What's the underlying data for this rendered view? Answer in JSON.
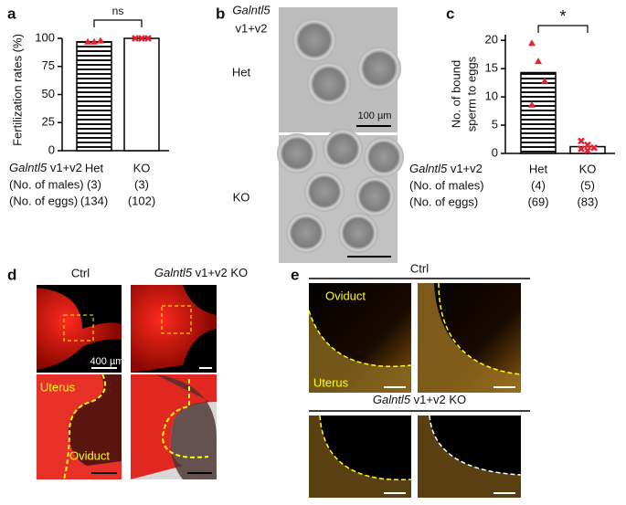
{
  "chart_data": [
    {
      "type": "bar",
      "panel": "a",
      "ylabel": "Fertilization rates (%)",
      "categories": [
        "Het",
        "KO"
      ],
      "values": [
        97,
        100
      ],
      "points": [
        [
          97,
          97,
          98
        ],
        [
          100,
          100,
          100
        ]
      ],
      "hatched": [
        true,
        false
      ],
      "point_marker": "triangle",
      "point_color": "#e8212e",
      "ylim": [
        0,
        100
      ],
      "yticks": [
        0,
        25,
        50,
        75,
        100
      ],
      "significance": "ns",
      "gene": "Galntl5",
      "genotype_suffix": " v1+v2",
      "row_labels": [
        "(No. of males)",
        "(No. of eggs)"
      ],
      "males": [
        "(3)",
        "(3)"
      ],
      "eggs": [
        "(134)",
        "(102)"
      ]
    },
    {
      "type": "bar",
      "panel": "c",
      "ylabel": [
        "No. of bound",
        "sperm to eggs"
      ],
      "categories": [
        "Het",
        "KO"
      ],
      "values": [
        14.3,
        1.2
      ],
      "points": [
        [
          19.5,
          16.3,
          12.8,
          8.6
        ],
        [
          2.2,
          1.5,
          1.0,
          0.8,
          0.5
        ]
      ],
      "hatched": [
        true,
        false
      ],
      "point_marker": "triangle",
      "point_color": "#e8212e",
      "ylim": [
        0,
        21
      ],
      "yticks": [
        0,
        5,
        10,
        15,
        20
      ],
      "significance": "*",
      "gene": "Galntl5",
      "genotype_suffix": " v1+v2",
      "row_labels": [
        "(No. of males)",
        "(No. of eggs)"
      ],
      "males": [
        "(4)",
        "(5)"
      ],
      "eggs": [
        "(69)",
        "(83)"
      ]
    }
  ],
  "panels": {
    "a": "a",
    "b": "b",
    "c": "c",
    "d": "d",
    "e": "e",
    "b_gene": "Galntl5",
    "b_suffix": "v1+v2",
    "b_het": "Het",
    "b_ko": "KO",
    "b_scale": "100 µm",
    "d_ctrl": "Ctrl",
    "d_gene": "Galntl5",
    "d_ko_suffix": " v1+v2 KO",
    "d_scale": "400 µm",
    "d_uterus": "Uterus",
    "d_oviduct": "Oviduct",
    "e_ctrl": "Ctrl",
    "e_oviduct": "Oviduct",
    "e_uterus": "Uterus",
    "e_gene": "Galntl5",
    "e_ko_suffix": " v1+v2 KO"
  }
}
